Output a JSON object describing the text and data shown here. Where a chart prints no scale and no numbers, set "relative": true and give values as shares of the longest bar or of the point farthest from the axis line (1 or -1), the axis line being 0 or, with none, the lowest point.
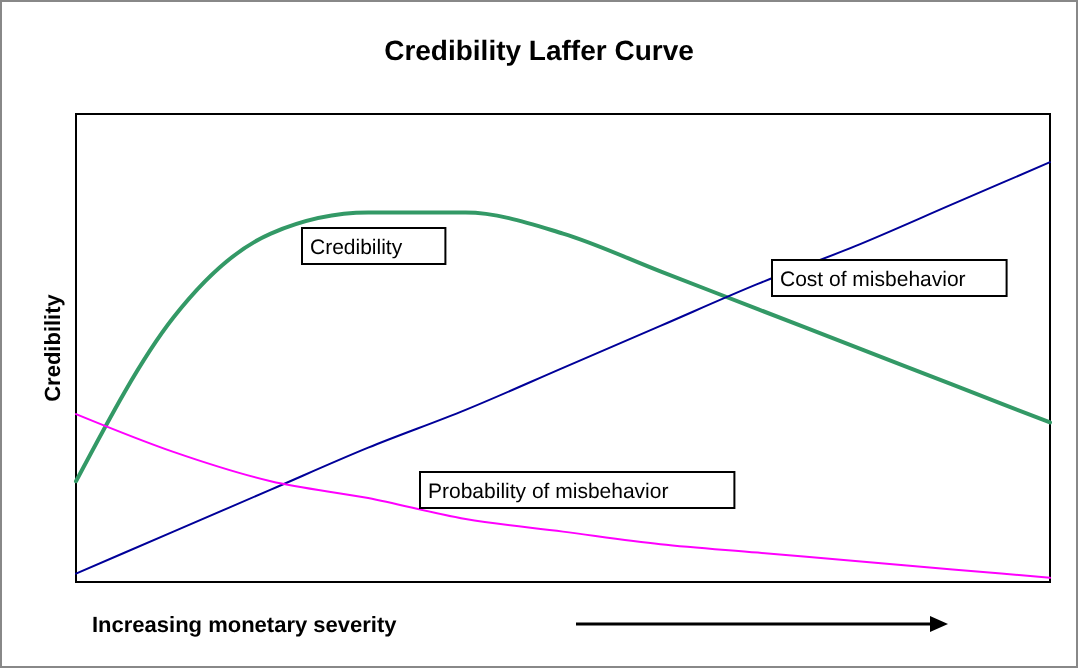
{
  "chart_data": {
    "type": "line",
    "title": "Credibility Laffer Curve",
    "xlabel": "Increasing monetary severity",
    "ylabel": "Credibility",
    "relative": true,
    "legend": false,
    "categories": [
      null,
      null,
      null,
      null,
      null,
      null,
      null,
      null,
      null,
      null,
      null
    ],
    "series": [
      {
        "name": "Credibility",
        "color": "#339966",
        "values": [
          0.24,
          0.63,
          0.83,
          0.88,
          0.88,
          0.83,
          0.74,
          0.65,
          0.56,
          0.47,
          0.38
        ]
      },
      {
        "name": "Cost of misbehavior",
        "color": "#000099",
        "values": [
          0.02,
          0.12,
          0.22,
          0.32,
          0.41,
          0.51,
          0.61,
          0.71,
          0.8,
          0.9,
          1.0
        ]
      },
      {
        "name": "Probability of misbehavior",
        "color": "#ff00ff",
        "values": [
          0.4,
          0.31,
          0.24,
          0.2,
          0.15,
          0.12,
          0.09,
          0.07,
          0.05,
          0.03,
          0.01
        ]
      }
    ]
  }
}
